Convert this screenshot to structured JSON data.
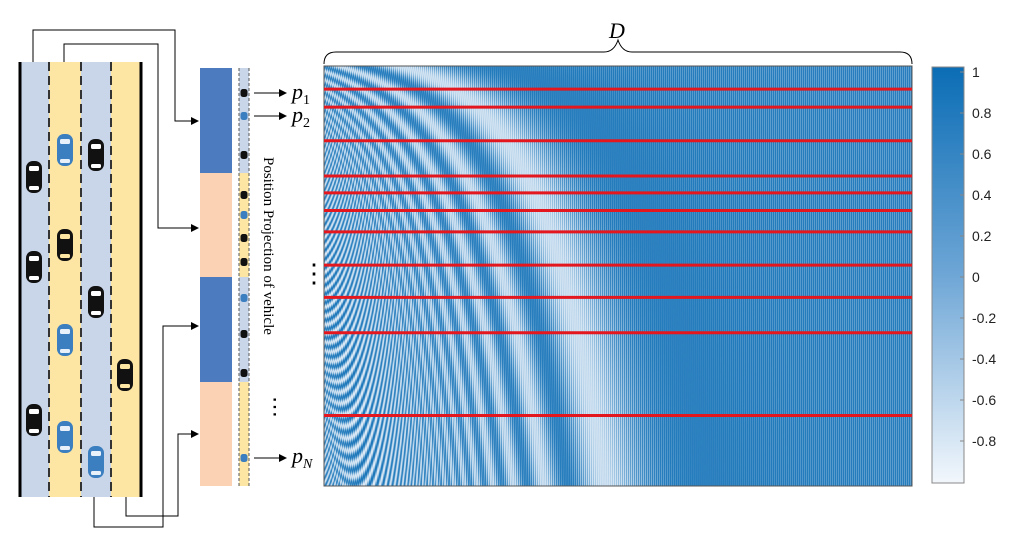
{
  "diagram": {
    "vertical_label": "Position Projection of vehicle",
    "dim_label": "D",
    "position_labels": [
      {
        "base": "p",
        "sub": "1"
      },
      {
        "base": "p",
        "sub": "2"
      },
      {
        "base": "p",
        "sub": "N"
      }
    ],
    "ellipsis_glyph": "⋮",
    "trailing_dots": "⋯"
  },
  "heatmap": {
    "rows_normalized": [
      0.055,
      0.098,
      0.178,
      0.262,
      0.302,
      0.344,
      0.395,
      0.474,
      0.551,
      0.635,
      0.832
    ],
    "colormap": [
      "#eef4fb",
      "#0b6db5"
    ]
  },
  "colorbar": {
    "ticks": [
      "1",
      "0.8",
      "0.6",
      "0.4",
      "0.2",
      "0",
      "-0.2",
      "-0.4",
      "-0.6",
      "-0.8"
    ],
    "tick_values": [
      1,
      0.8,
      0.6,
      0.4,
      0.2,
      0,
      -0.2,
      -0.4,
      -0.6,
      -0.8
    ],
    "range": [
      -1,
      1
    ]
  },
  "colors": {
    "light_lane": "#c9d6ea",
    "yellow_lane": "#fde6a4",
    "blue_block": "#4d7bbf",
    "peach_block": "#fbd3b4",
    "red_line": "#e3171d",
    "car_blue": "#3b7fc0",
    "car_black": "#111111"
  }
}
